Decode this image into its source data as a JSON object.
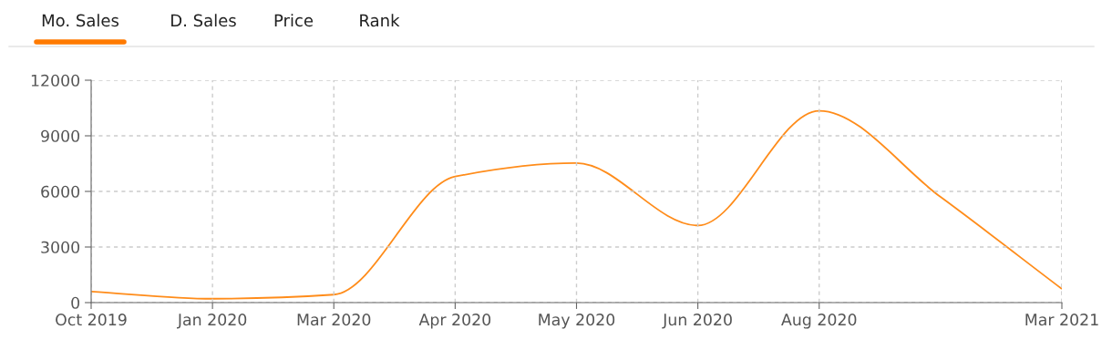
{
  "chart_data": {
    "type": "line",
    "categories": [
      "Oct 2019",
      "Jan 2020",
      "Mar 2020",
      "Apr 2020",
      "May 2020",
      "Jun 2020",
      "Aug 2020",
      null,
      "Mar 2021"
    ],
    "series": [
      {
        "color": "#ff8c1a",
        "values": [
          600,
          210,
          430,
          6800,
          7530,
          4160,
          10350,
          5700,
          740
        ]
      }
    ],
    "ylim": [
      0,
      12000
    ],
    "yticks": [
      0,
      3000,
      6000,
      9000,
      12000
    ],
    "grid": true,
    "marker": "none",
    "line_style": "solid",
    "annotations": [
      "Mo. Sales",
      "D. Sales",
      "Price",
      "Rank"
    ]
  }
}
